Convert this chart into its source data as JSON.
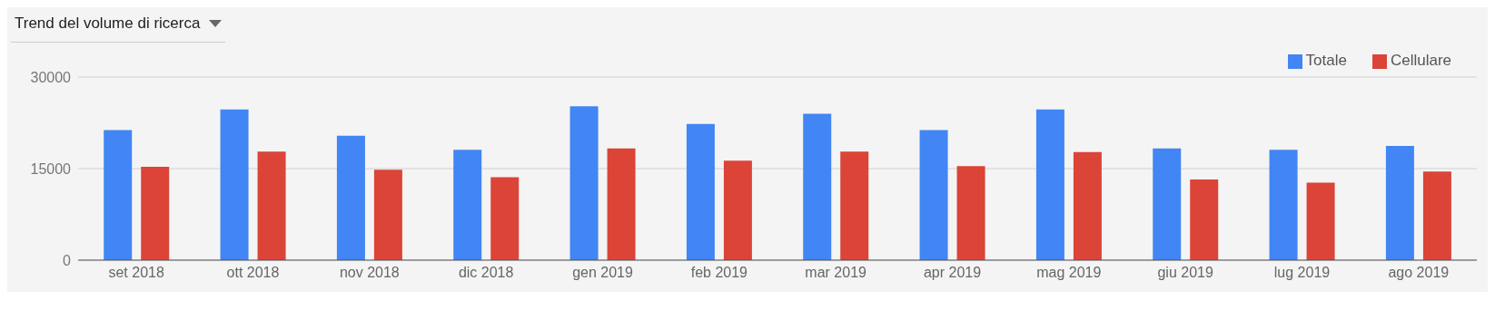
{
  "chart_data": {
    "type": "bar",
    "title": "Trend del volume di ricerca",
    "categories": [
      "set 2018",
      "ott 2018",
      "nov 2018",
      "dic 2018",
      "gen 2019",
      "feb 2019",
      "mar 2019",
      "apr 2019",
      "mag 2019",
      "giu 2019",
      "lug 2019",
      "ago 2019"
    ],
    "series": [
      {
        "name": "Totale",
        "color": "#4285f4",
        "values": [
          21300,
          24700,
          20400,
          18100,
          25200,
          22300,
          24000,
          21300,
          24700,
          18300,
          18100,
          18700
        ]
      },
      {
        "name": "Cellulare",
        "color": "#db4437",
        "values": [
          15300,
          17800,
          14800,
          13600,
          18300,
          16300,
          17800,
          15400,
          17700,
          13200,
          12700,
          14500
        ]
      }
    ],
    "ylim": [
      0,
      30000
    ],
    "yticks": [
      0,
      15000,
      30000
    ],
    "grid": "y",
    "legend": "top right"
  }
}
